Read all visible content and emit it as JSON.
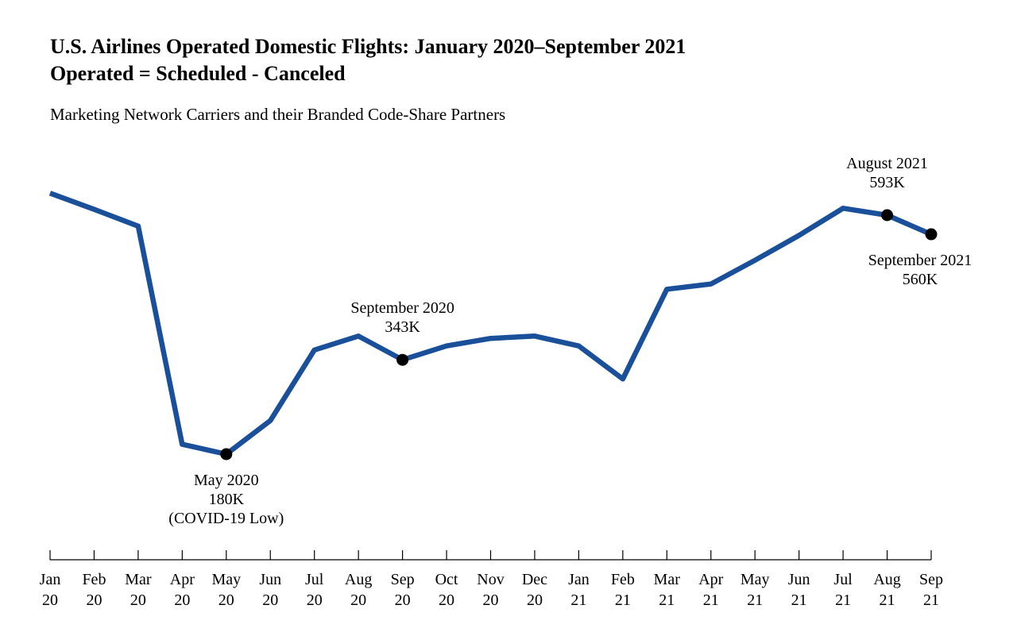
{
  "title_line_1": "U.S. Airlines Operated Domestic Flights: January 2020–September 2021",
  "title_line_2": "Operated = Scheduled - Canceled",
  "subtitle": "Marketing Network Carriers and their Branded Code-Share Partners",
  "colors": {
    "line": "#1a4f99",
    "marker": "#000000",
    "axis": "#000000"
  },
  "chart_data": {
    "type": "line",
    "title": "U.S. Airlines Operated Domestic Flights: January 2020–September 2021",
    "subtitle": "Operated = Scheduled - Canceled",
    "note": "Marketing Network Carriers and their Branded Code-Share Partners",
    "xlabel": "",
    "ylabel": "",
    "grid": false,
    "x": [
      [
        "Jan",
        "20"
      ],
      [
        "Feb",
        "20"
      ],
      [
        "Mar",
        "20"
      ],
      [
        "Apr",
        "20"
      ],
      [
        "May",
        "20"
      ],
      [
        "Jun",
        "20"
      ],
      [
        "Jul",
        "20"
      ],
      [
        "Aug",
        "20"
      ],
      [
        "Sep",
        "20"
      ],
      [
        "Oct",
        "20"
      ],
      [
        "Nov",
        "20"
      ],
      [
        "Dec",
        "20"
      ],
      [
        "Jan",
        "21"
      ],
      [
        "Feb",
        "21"
      ],
      [
        "Mar",
        "21"
      ],
      [
        "Apr",
        "21"
      ],
      [
        "May",
        "21"
      ],
      [
        "Jun",
        "21"
      ],
      [
        "Jul",
        "21"
      ],
      [
        "Aug",
        "21"
      ],
      [
        "Sep",
        "21"
      ]
    ],
    "series": [
      {
        "values": [
          631,
          603,
          574,
          197,
          180,
          238,
          360,
          384,
          343,
          367,
          380,
          384,
          367,
          310,
          465,
          474,
          515,
          558,
          605,
          593,
          560
        ]
      }
    ],
    "annotations": [
      {
        "index": 4,
        "lines": [
          "May 2020",
          "180K",
          "(COVID-19 Low)"
        ],
        "position": "below"
      },
      {
        "index": 8,
        "lines": [
          "September 2020",
          "343K"
        ],
        "position": "above"
      },
      {
        "index": 19,
        "lines": [
          "August 2021",
          "593K"
        ],
        "position": "above"
      },
      {
        "index": 20,
        "lines": [
          "September 2021",
          "560K"
        ],
        "position": "below"
      }
    ]
  }
}
